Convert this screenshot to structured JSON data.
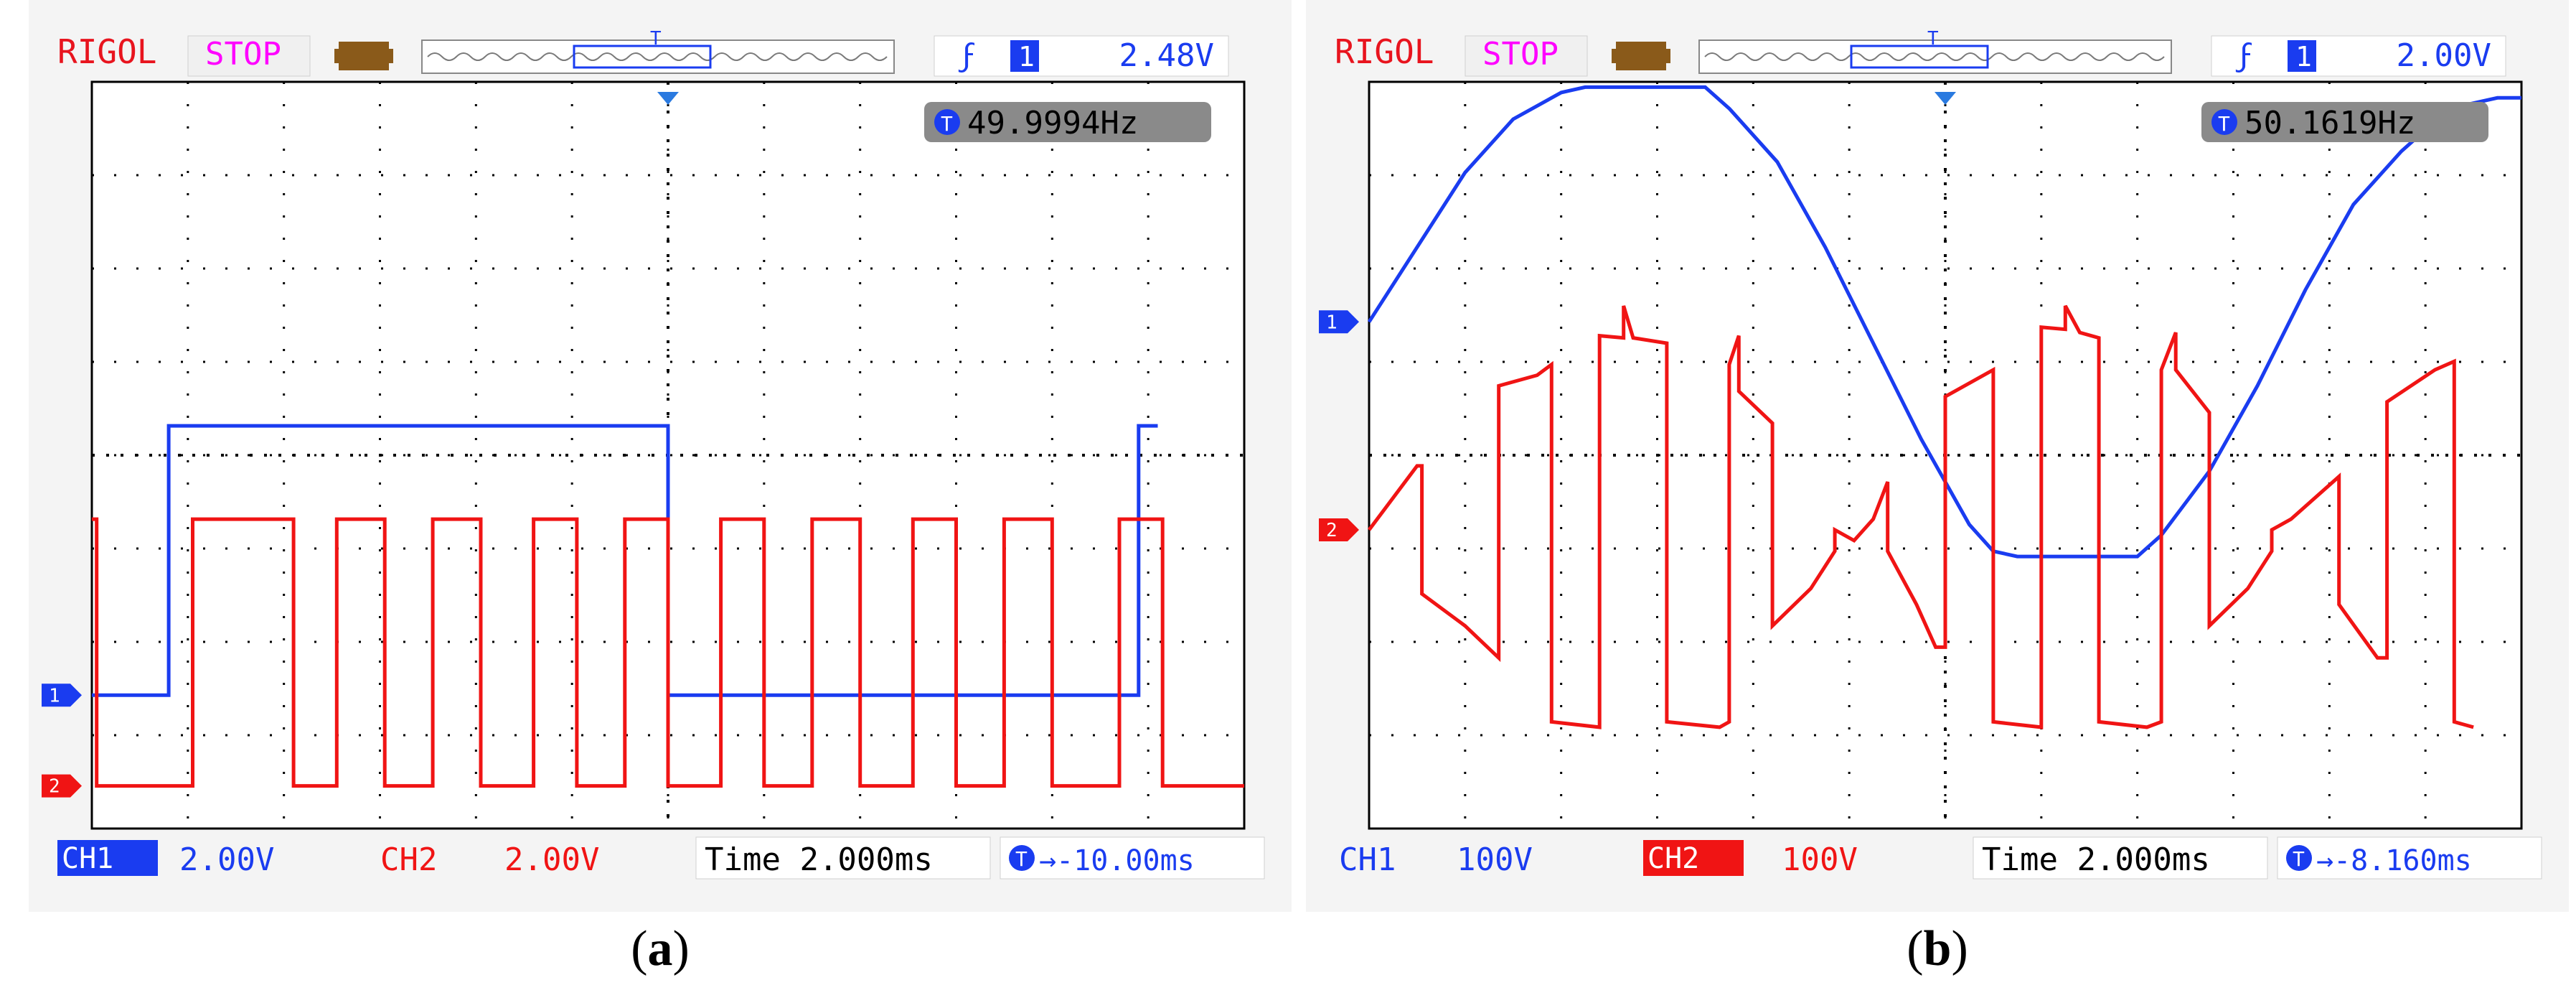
{
  "panels": [
    {
      "caption_letter": "a",
      "header": {
        "brand": "RIGOL",
        "status": "STOP",
        "trigger_channel": "1",
        "trigger_level": "2.48V"
      },
      "frequency": "49.9994Hz",
      "footer": {
        "ch1_label": "CH1",
        "ch1_scale": "2.00V",
        "ch2_label": "CH2",
        "ch2_scale": "2.00V",
        "timebase": "Time 2.000ms",
        "offset": "→-10.00ms"
      },
      "colors": {
        "ch1": "#1a3cf0",
        "ch2": "#f01414",
        "brand": "#e8141e",
        "status": "#ff00ff"
      }
    },
    {
      "caption_letter": "b",
      "header": {
        "brand": "RIGOL",
        "status": "STOP",
        "trigger_channel": "1",
        "trigger_level": "2.00V"
      },
      "frequency": "50.1619Hz",
      "footer": {
        "ch1_label": "CH1",
        "ch1_scale": "100V",
        "ch2_label": "CH2",
        "ch2_scale": "100V",
        "timebase": "Time 2.000ms",
        "offset": "→-8.160ms"
      },
      "colors": {
        "ch1": "#1a3cf0",
        "ch2": "#f01414",
        "brand": "#e8141e",
        "status": "#ff00ff"
      }
    }
  ],
  "chart_data": [
    {
      "type": "line",
      "grid": true,
      "x_unit": "ms",
      "xlim": [
        -12,
        12
      ],
      "time_per_div_ms": 2.0,
      "series": [
        {
          "name": "CH1",
          "volts_per_div": 2.0,
          "ylim": [
            -2.5,
            11.5
          ],
          "points": [
            [
              -12,
              0
            ],
            [
              -10.4,
              0
            ],
            [
              -10.4,
              5.05
            ],
            [
              0,
              5.05
            ],
            [
              0,
              0
            ],
            [
              9.8,
              0
            ],
            [
              9.8,
              5.05
            ],
            [
              10.2,
              5.05
            ]
          ]
        },
        {
          "name": "CH2",
          "volts_per_div": 2.0,
          "ylim": [
            -0.8,
            13.2
          ],
          "points": [
            [
              -12,
              5
            ],
            [
              -11.9,
              5
            ],
            [
              -11.9,
              0
            ],
            [
              -9.9,
              0
            ],
            [
              -9.9,
              5
            ],
            [
              -7.8,
              5
            ],
            [
              -7.8,
              0
            ],
            [
              -6.9,
              0
            ],
            [
              -6.9,
              5
            ],
            [
              -5.9,
              5
            ],
            [
              -5.9,
              0
            ],
            [
              -4.9,
              0
            ],
            [
              -4.9,
              5
            ],
            [
              -3.9,
              5
            ],
            [
              -3.9,
              0
            ],
            [
              -2.8,
              0
            ],
            [
              -2.8,
              5
            ],
            [
              -1.9,
              5
            ],
            [
              -1.9,
              0
            ],
            [
              -0.9,
              0
            ],
            [
              -0.9,
              5
            ],
            [
              0,
              5
            ],
            [
              0,
              0
            ],
            [
              1.1,
              0
            ],
            [
              1.1,
              5
            ],
            [
              2.0,
              5
            ],
            [
              2.0,
              0
            ],
            [
              3.0,
              0
            ],
            [
              3.0,
              5
            ],
            [
              4.0,
              5
            ],
            [
              4.0,
              0
            ],
            [
              5.1,
              0
            ],
            [
              5.1,
              5
            ],
            [
              6.0,
              5
            ],
            [
              6.0,
              0
            ],
            [
              7.0,
              0
            ],
            [
              7.0,
              5
            ],
            [
              8.0,
              5
            ],
            [
              8.0,
              0
            ],
            [
              9.4,
              0
            ],
            [
              9.4,
              5
            ],
            [
              10.3,
              5
            ],
            [
              10.3,
              0
            ],
            [
              12,
              0
            ]
          ]
        }
      ]
    },
    {
      "type": "line",
      "grid": true,
      "x_unit": "ms",
      "xlim": [
        -12,
        12
      ],
      "time_per_div_ms": 2.0,
      "series": [
        {
          "name": "CH1",
          "volts_per_div": 100,
          "ylim": [
            -475,
            225
          ],
          "points": [
            [
              -12,
              0
            ],
            [
              -11,
              70
            ],
            [
              -10,
              140
            ],
            [
              -9,
              190
            ],
            [
              -8,
              215
            ],
            [
              -7.5,
              220
            ],
            [
              -5,
              220
            ],
            [
              -4.5,
              200
            ],
            [
              -3.5,
              150
            ],
            [
              -2.5,
              70
            ],
            [
              -1.5,
              -20
            ],
            [
              -0.5,
              -110
            ],
            [
              0,
              -150
            ],
            [
              0.5,
              -190
            ],
            [
              1,
              -215
            ],
            [
              1.5,
              -220
            ],
            [
              4,
              -220
            ],
            [
              4.5,
              -200
            ],
            [
              5.5,
              -140
            ],
            [
              6.5,
              -60
            ],
            [
              7.5,
              30
            ],
            [
              8.5,
              110
            ],
            [
              9.5,
              160
            ],
            [
              10.5,
              200
            ],
            [
              11.5,
              210
            ],
            [
              12,
              210
            ]
          ]
        },
        {
          "name": "CH2",
          "volts_per_div": 100,
          "ylim": [
            -280,
            420
          ],
          "points": [
            [
              -12,
              0
            ],
            [
              -11.5,
              30
            ],
            [
              -11,
              60
            ],
            [
              -10.9,
              60
            ],
            [
              -10.9,
              -60
            ],
            [
              -10,
              -90
            ],
            [
              -9.3,
              -120
            ],
            [
              -9.3,
              135
            ],
            [
              -8.5,
              145
            ],
            [
              -8.2,
              155
            ],
            [
              -8.2,
              -180
            ],
            [
              -7.2,
              -185
            ],
            [
              -7.2,
              182
            ],
            [
              -6.7,
              180
            ],
            [
              -6.7,
              210
            ],
            [
              -6.5,
              180
            ],
            [
              -5.8,
              175
            ],
            [
              -5.8,
              -180
            ],
            [
              -4.7,
              -185
            ],
            [
              -4.5,
              -180
            ],
            [
              -4.5,
              155
            ],
            [
              -4.3,
              182
            ],
            [
              -4.3,
              130
            ],
            [
              -3.6,
              100
            ],
            [
              -3.6,
              -90
            ],
            [
              -2.8,
              -55
            ],
            [
              -2.3,
              -20
            ],
            [
              -2.3,
              0
            ],
            [
              -1.9,
              -10
            ],
            [
              -1.5,
              10
            ],
            [
              -1.2,
              45
            ],
            [
              -1.2,
              -20
            ],
            [
              -0.6,
              -70
            ],
            [
              -0.2,
              -110
            ],
            [
              0,
              -110
            ],
            [
              0,
              125
            ],
            [
              0.8,
              145
            ],
            [
              1.0,
              150
            ],
            [
              1.0,
              -180
            ],
            [
              2.0,
              -185
            ],
            [
              2.0,
              190
            ],
            [
              2.5,
              188
            ],
            [
              2.5,
              210
            ],
            [
              2.8,
              185
            ],
            [
              3.2,
              180
            ],
            [
              3.2,
              -180
            ],
            [
              4.2,
              -185
            ],
            [
              4.5,
              -180
            ],
            [
              4.5,
              150
            ],
            [
              4.8,
              185
            ],
            [
              4.8,
              150
            ],
            [
              5.5,
              110
            ],
            [
              5.5,
              -90
            ],
            [
              6.3,
              -55
            ],
            [
              6.8,
              -20
            ],
            [
              6.8,
              0
            ],
            [
              7.2,
              10
            ],
            [
              8.2,
              50
            ],
            [
              8.2,
              -70
            ],
            [
              9.0,
              -120
            ],
            [
              9.2,
              -120
            ],
            [
              9.2,
              120
            ],
            [
              10.2,
              150
            ],
            [
              10.6,
              158
            ],
            [
              10.6,
              -180
            ],
            [
              11.0,
              -185
            ]
          ]
        }
      ]
    }
  ]
}
